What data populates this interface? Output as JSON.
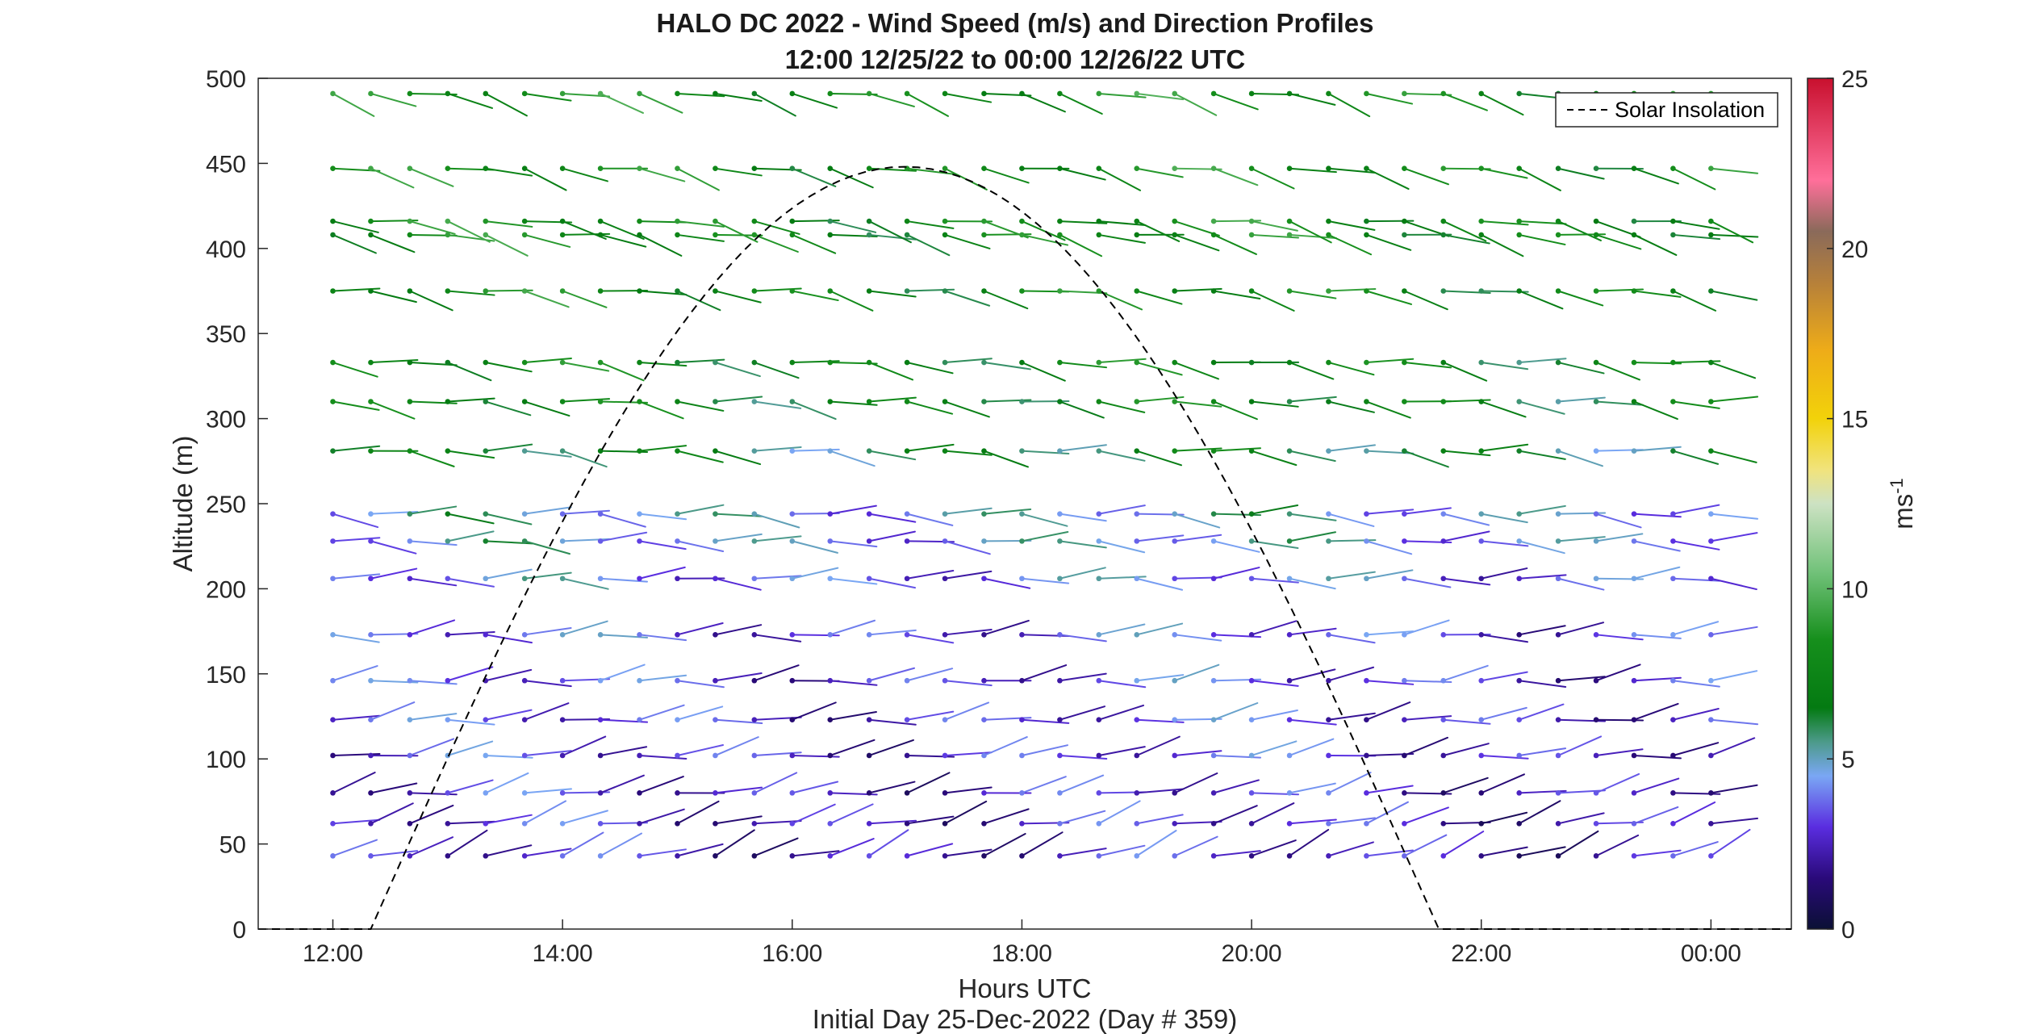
{
  "chart_data": {
    "type": "wind-barb-profile",
    "title_line1": "HALO DC 2022 - Wind Speed (m/s) and Direction Profiles",
    "title_line2": "12:00 12/25/22 to 00:00 12/26/22  UTC",
    "xlabel": "Hours UTC",
    "ylabel": "Altitude (m)",
    "footer": "Initial Day 25-Dec-2022 (Day # 359)",
    "xlim_hours": [
      11.35,
      24.7
    ],
    "ylim": [
      0,
      500
    ],
    "xticks": [
      {
        "value": 12,
        "label": "12:00"
      },
      {
        "value": 14,
        "label": "14:00"
      },
      {
        "value": 16,
        "label": "16:00"
      },
      {
        "value": 18,
        "label": "18:00"
      },
      {
        "value": 20,
        "label": "20:00"
      },
      {
        "value": 22,
        "label": "22:00"
      },
      {
        "value": 24,
        "label": "00:00"
      }
    ],
    "yticks": [
      0,
      50,
      100,
      150,
      200,
      250,
      300,
      350,
      400,
      450,
      500
    ],
    "colorbar": {
      "min": 0,
      "max": 25,
      "ticks": [
        0,
        5,
        10,
        15,
        20,
        25
      ],
      "label": "ms",
      "label_superscript": "-1",
      "stops": [
        {
          "v": 0,
          "c": "#0b1035"
        },
        {
          "v": 1.5,
          "c": "#2a0a7a"
        },
        {
          "v": 3,
          "c": "#5a2de0"
        },
        {
          "v": 4.5,
          "c": "#7aa7f4"
        },
        {
          "v": 5.5,
          "c": "#4c9a8a"
        },
        {
          "v": 6.5,
          "c": "#047a12"
        },
        {
          "v": 8.5,
          "c": "#168f1c"
        },
        {
          "v": 10.5,
          "c": "#72c27a"
        },
        {
          "v": 12.5,
          "c": "#cde2c3"
        },
        {
          "v": 13.5,
          "c": "#f1e37c"
        },
        {
          "v": 15,
          "c": "#f2d20a"
        },
        {
          "v": 17,
          "c": "#eeac18"
        },
        {
          "v": 19,
          "c": "#b6803a"
        },
        {
          "v": 20.5,
          "c": "#8a6a5a"
        },
        {
          "v": 22,
          "c": "#ff6f9a"
        },
        {
          "v": 25,
          "c": "#c8102e"
        }
      ]
    },
    "legend": {
      "label": "Solar Insolation",
      "location": "top-right"
    },
    "solar_insolation": {
      "start_hour": 12.33,
      "end_hour": 21.63,
      "peak_altitude": 448
    },
    "time_hours": [
      12.0,
      12.33,
      12.67,
      13.0,
      13.33,
      13.67,
      14.0,
      14.33,
      14.67,
      15.0,
      15.33,
      15.67,
      16.0,
      16.33,
      16.67,
      17.0,
      17.33,
      17.67,
      18.0,
      18.33,
      18.67,
      19.0,
      19.33,
      19.67,
      20.0,
      20.33,
      20.67,
      21.0,
      21.33,
      21.67,
      22.0,
      22.33,
      22.67,
      23.0,
      23.33,
      23.67,
      24.0
    ],
    "altitudes": [
      43,
      62,
      80,
      102,
      123,
      146,
      173,
      206,
      228,
      244,
      281,
      310,
      333,
      375,
      408,
      416,
      447,
      491
    ],
    "speed_profiles": {
      "altitudes": [
        43,
        62,
        80,
        102,
        123,
        146,
        173,
        206,
        228,
        244,
        281,
        310,
        333,
        375,
        408,
        416,
        447,
        491
      ],
      "speed_ms": [
        2.5,
        2.6,
        2.7,
        2.9,
        3.0,
        3.1,
        3.3,
        3.8,
        4.4,
        4.6,
        6.3,
        7.1,
        7.3,
        7.6,
        7.7,
        7.8,
        7.9,
        8.0
      ],
      "direction_deg": [
        250,
        255,
        258,
        260,
        262,
        264,
        266,
        270,
        272,
        273,
        276,
        278,
        279,
        281,
        283,
        283,
        284,
        285
      ]
    }
  }
}
